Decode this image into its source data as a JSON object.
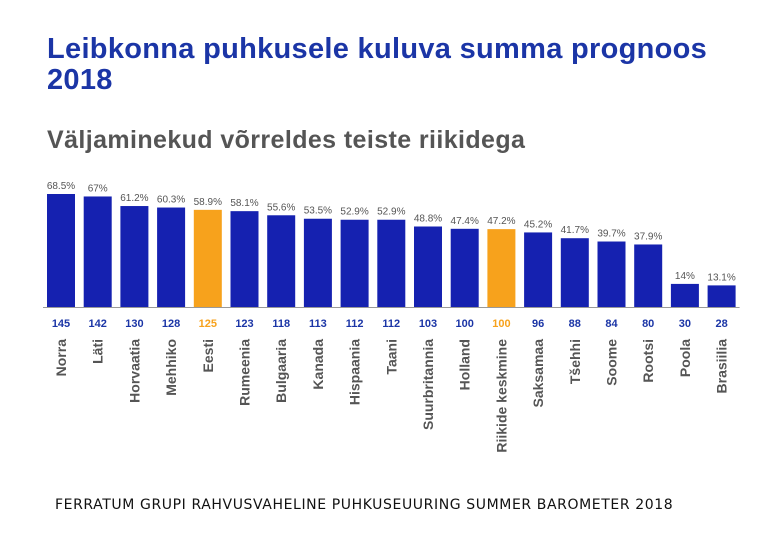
{
  "title": "Leibkonna puhkusele kuluva summa prognoos 2018",
  "subtitle": "Väljaminekud võrreldes teiste riikidega",
  "footer": "FERRATUM GRUPI RAHVUSVAHELINE PUHKUSEUURING SUMMER BAROMETER 2018",
  "colors": {
    "bar": "#1521b0",
    "highlight": "#f7a21c",
    "index_text": "#1b35a6",
    "highlight_text": "#f7a21c",
    "pct_text": "#555555",
    "category_text": "#555555",
    "axis": "#999999"
  },
  "chart_data": {
    "type": "bar",
    "categories": [
      "Norra",
      "Läti",
      "Horvaatia",
      "Mehhiko",
      "Eesti",
      "Rumeenia",
      "Bulgaaria",
      "Kanada",
      "Hispaania",
      "Taani",
      "Suurbritannia",
      "Holland",
      "Riikide keskmine",
      "Saksamaa",
      "Tšehhi",
      "Soome",
      "Rootsi",
      "Poola",
      "Brasiilia"
    ],
    "values": [
      68.5,
      67,
      61.2,
      60.3,
      58.9,
      58.1,
      55.6,
      53.5,
      52.9,
      52.9,
      48.8,
      47.4,
      47.2,
      45.2,
      41.7,
      39.7,
      37.9,
      14,
      13.1
    ],
    "data_labels": [
      "68.5%",
      "67%",
      "61.2%",
      "60.3%",
      "58.9%",
      "58.1%",
      "55.6%",
      "53.5%",
      "52.9%",
      "52.9%",
      "48.8%",
      "47.4%",
      "47.2%",
      "45.2%",
      "41.7%",
      "39.7%",
      "37.9%",
      "14%",
      "13.1%"
    ],
    "index_values": [
      "145",
      "142",
      "130",
      "128",
      "125",
      "123",
      "118",
      "113",
      "112",
      "112",
      "103",
      "100",
      "100",
      "96",
      "88",
      "84",
      "80",
      "30",
      "28"
    ],
    "highlighted": [
      "Eesti",
      "Riikide keskmine"
    ],
    "ylim": [
      0,
      72
    ],
    "grid": false,
    "legend": "none"
  }
}
